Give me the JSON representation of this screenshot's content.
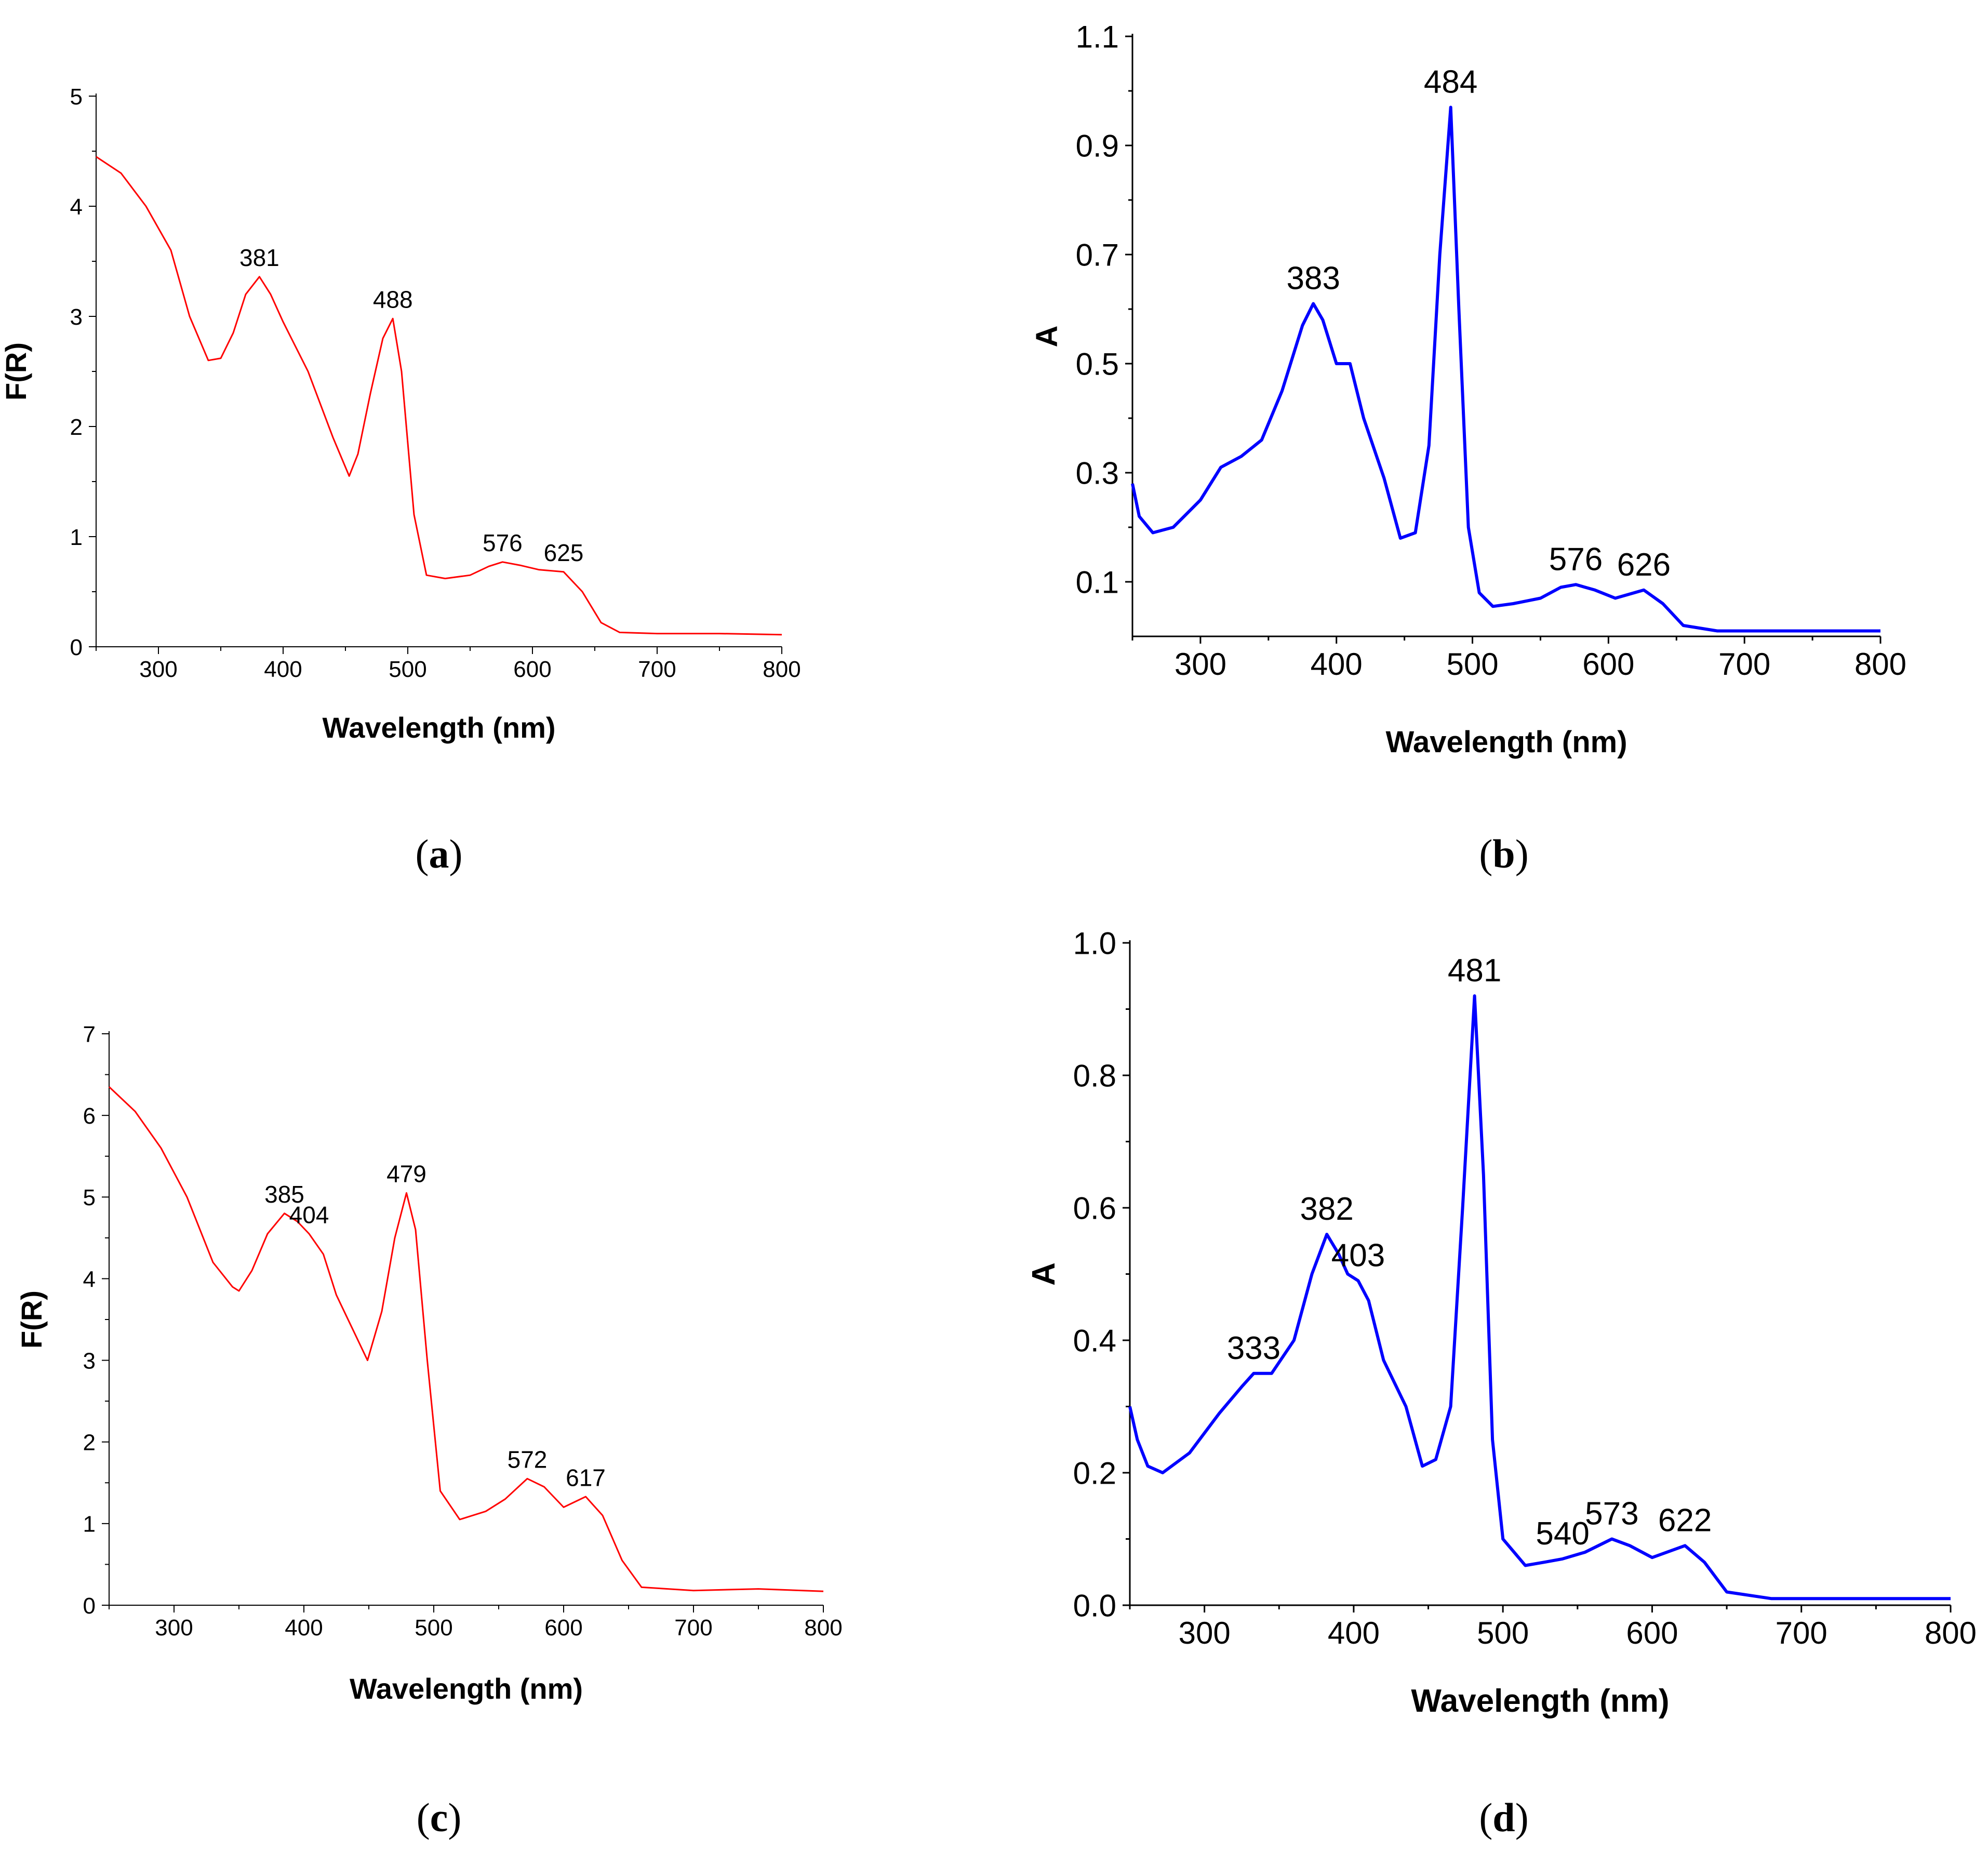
{
  "chart_data": [
    {
      "type": "line",
      "panel": "a",
      "caption": "(a)",
      "caption_parts": {
        "open": "(",
        "letter": "a",
        "close": ")"
      },
      "color": "#ff0000",
      "xlabel": "Wavelength (nm)",
      "ylabel": "F(R)",
      "xlim": [
        250,
        800
      ],
      "ylim": [
        0,
        5
      ],
      "xticks": [
        300,
        400,
        500,
        600,
        700,
        800
      ],
      "yticks": [
        0,
        1,
        2,
        3,
        4,
        5
      ],
      "x": [
        250,
        270,
        290,
        310,
        325,
        340,
        350,
        360,
        370,
        381,
        390,
        400,
        420,
        440,
        453,
        460,
        470,
        480,
        488,
        495,
        505,
        515,
        530,
        550,
        565,
        576,
        590,
        605,
        625,
        640,
        655,
        670,
        700,
        750,
        800
      ],
      "values": [
        4.45,
        4.3,
        4.0,
        3.6,
        3.0,
        2.6,
        2.62,
        2.85,
        3.2,
        3.36,
        3.2,
        2.95,
        2.5,
        1.9,
        1.55,
        1.75,
        2.3,
        2.8,
        2.98,
        2.5,
        1.2,
        0.65,
        0.62,
        0.65,
        0.73,
        0.77,
        0.74,
        0.7,
        0.68,
        0.5,
        0.22,
        0.13,
        0.12,
        0.12,
        0.11
      ],
      "annotations": [
        {
          "x": 381,
          "y": 3.36,
          "text": "381"
        },
        {
          "x": 488,
          "y": 2.98,
          "text": "488"
        },
        {
          "x": 576,
          "y": 0.77,
          "text": "576"
        },
        {
          "x": 625,
          "y": 0.68,
          "text": "625"
        }
      ]
    },
    {
      "type": "line",
      "panel": "b",
      "caption": "(b)",
      "caption_parts": {
        "open": "(",
        "letter": "b",
        "close": ")"
      },
      "color": "#0000ff",
      "xlabel": "Wavelength (nm)",
      "ylabel": "A",
      "xlim": [
        250,
        800
      ],
      "ylim": [
        0,
        1.1
      ],
      "xticks": [
        300,
        400,
        500,
        600,
        700,
        800
      ],
      "yticks": [
        0.1,
        0.3,
        0.5,
        0.7,
        0.9,
        1.1
      ],
      "x": [
        250,
        255,
        265,
        280,
        300,
        315,
        330,
        345,
        360,
        375,
        383,
        390,
        400,
        410,
        420,
        435,
        447,
        458,
        468,
        476,
        484,
        490,
        497,
        505,
        515,
        530,
        550,
        565,
        576,
        590,
        605,
        626,
        640,
        655,
        680,
        720,
        760,
        800
      ],
      "values": [
        0.28,
        0.22,
        0.19,
        0.2,
        0.25,
        0.31,
        0.33,
        0.36,
        0.45,
        0.57,
        0.61,
        0.58,
        0.5,
        0.5,
        0.4,
        0.29,
        0.18,
        0.19,
        0.35,
        0.7,
        0.97,
        0.6,
        0.2,
        0.08,
        0.055,
        0.06,
        0.07,
        0.09,
        0.095,
        0.085,
        0.07,
        0.085,
        0.06,
        0.02,
        0.01,
        0.01,
        0.01,
        0.01
      ],
      "annotations": [
        {
          "x": 383,
          "y": 0.61,
          "text": "383"
        },
        {
          "x": 484,
          "y": 0.97,
          "text": "484"
        },
        {
          "x": 576,
          "y": 0.095,
          "text": "576"
        },
        {
          "x": 626,
          "y": 0.085,
          "text": "626"
        }
      ]
    },
    {
      "type": "line",
      "panel": "c",
      "caption": "(c)",
      "caption_parts": {
        "open": "(",
        "letter": "c",
        "close": ")"
      },
      "color": "#ff0000",
      "xlabel": "Wavelength (nm)",
      "ylabel": "F(R)",
      "xlim": [
        250,
        800
      ],
      "ylim": [
        0,
        7
      ],
      "xticks": [
        300,
        400,
        500,
        600,
        700,
        800
      ],
      "yticks": [
        0,
        1,
        2,
        3,
        4,
        5,
        6,
        7
      ],
      "x": [
        250,
        270,
        290,
        310,
        330,
        345,
        350,
        360,
        372,
        385,
        395,
        404,
        415,
        425,
        440,
        449,
        460,
        470,
        479,
        486,
        495,
        505,
        520,
        540,
        555,
        572,
        585,
        600,
        617,
        630,
        645,
        660,
        700,
        750,
        800
      ],
      "values": [
        6.35,
        6.05,
        5.6,
        5.0,
        4.2,
        3.9,
        3.85,
        4.1,
        4.55,
        4.8,
        4.7,
        4.55,
        4.3,
        3.8,
        3.3,
        3.0,
        3.6,
        4.5,
        5.05,
        4.6,
        3.0,
        1.4,
        1.05,
        1.15,
        1.3,
        1.55,
        1.45,
        1.2,
        1.33,
        1.1,
        0.55,
        0.22,
        0.18,
        0.2,
        0.17
      ],
      "annotations": [
        {
          "x": 385,
          "y": 4.8,
          "text": "385"
        },
        {
          "x": 404,
          "y": 4.55,
          "text": "404"
        },
        {
          "x": 479,
          "y": 5.05,
          "text": "479"
        },
        {
          "x": 572,
          "y": 1.55,
          "text": "572"
        },
        {
          "x": 617,
          "y": 1.33,
          "text": "617"
        }
      ]
    },
    {
      "type": "line",
      "panel": "d",
      "caption": "(d)",
      "caption_parts": {
        "open": "(",
        "letter": "d",
        "close": ")"
      },
      "color": "#0000ff",
      "xlabel": "Wavelength (nm)",
      "ylabel": "A",
      "xlim": [
        250,
        800
      ],
      "ylim": [
        0,
        1.0
      ],
      "xticks": [
        300,
        400,
        500,
        600,
        700,
        800
      ],
      "yticks": [
        0.0,
        0.2,
        0.4,
        0.6,
        0.8,
        1.0
      ],
      "ytick_labels": [
        "0.0",
        "0.2",
        "0.4",
        "0.6",
        "0.8",
        "1.0"
      ],
      "x": [
        250,
        255,
        262,
        272,
        290,
        310,
        325,
        333,
        345,
        360,
        372,
        382,
        390,
        396,
        403,
        410,
        420,
        435,
        446,
        455,
        465,
        473,
        481,
        487,
        493,
        500,
        515,
        528,
        540,
        555,
        573,
        585,
        600,
        622,
        635,
        650,
        680,
        720,
        760,
        800
      ],
      "values": [
        0.3,
        0.25,
        0.21,
        0.2,
        0.23,
        0.29,
        0.33,
        0.35,
        0.35,
        0.4,
        0.5,
        0.56,
        0.53,
        0.5,
        0.49,
        0.46,
        0.37,
        0.3,
        0.21,
        0.22,
        0.3,
        0.6,
        0.92,
        0.65,
        0.25,
        0.1,
        0.06,
        0.065,
        0.07,
        0.08,
        0.1,
        0.09,
        0.072,
        0.09,
        0.065,
        0.02,
        0.01,
        0.01,
        0.01,
        0.01
      ],
      "annotations": [
        {
          "x": 333,
          "y": 0.35,
          "text": "333"
        },
        {
          "x": 382,
          "y": 0.56,
          "text": "382"
        },
        {
          "x": 403,
          "y": 0.49,
          "text": "403"
        },
        {
          "x": 481,
          "y": 0.92,
          "text": "481"
        },
        {
          "x": 540,
          "y": 0.07,
          "text": "540"
        },
        {
          "x": 573,
          "y": 0.1,
          "text": "573"
        },
        {
          "x": 622,
          "y": 0.09,
          "text": "622"
        }
      ]
    }
  ]
}
